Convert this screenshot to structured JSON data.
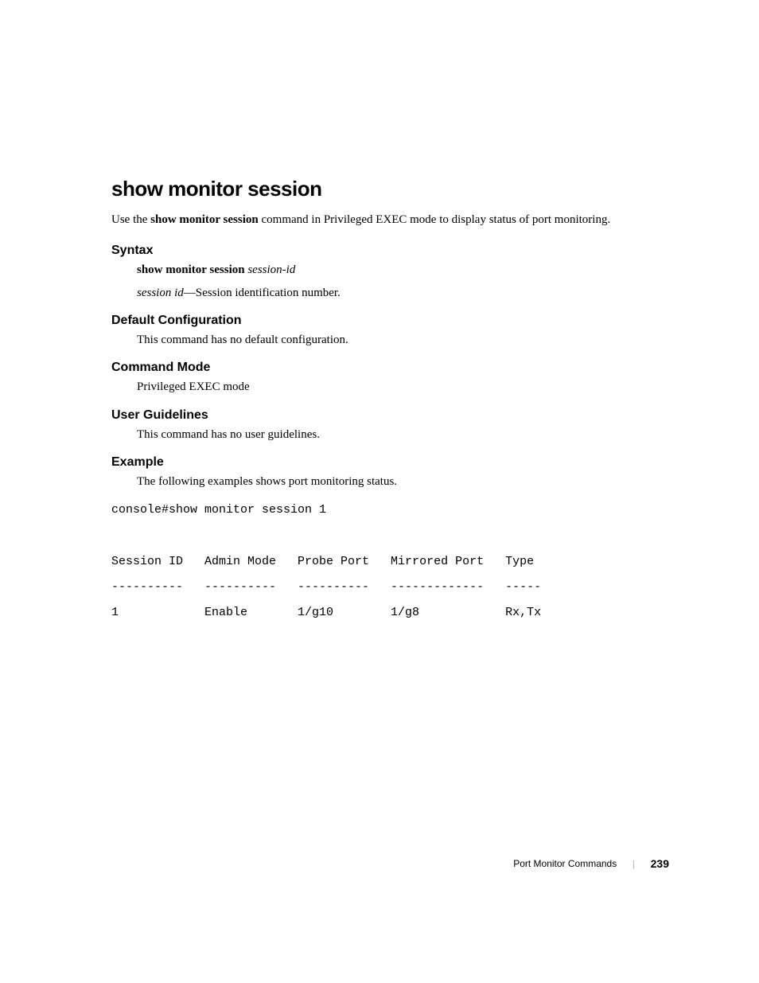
{
  "title": "show monitor session",
  "intro": {
    "prefix": "Use the ",
    "bold": "show monitor session",
    "suffix": " command in Privileged EXEC mode to display status of port monitoring."
  },
  "sections": {
    "syntax": {
      "heading": "Syntax",
      "command_bold": "show monitor session",
      "command_param": "session-id",
      "param_name": "session id",
      "param_desc": "—Session identification number."
    },
    "default_config": {
      "heading": "Default Configuration",
      "text": "This command has no default configuration."
    },
    "command_mode": {
      "heading": "Command Mode",
      "text": "Privileged EXEC mode"
    },
    "user_guidelines": {
      "heading": "User Guidelines",
      "text": "This command has no user guidelines."
    },
    "example": {
      "heading": "Example",
      "text": "The following examples shows port monitoring status.",
      "console_line": "console#show monitor session 1",
      "table": {
        "headers": [
          "Session ID",
          "Admin Mode",
          "Probe Port",
          "Mirrored Port",
          "Type"
        ],
        "separators": [
          "----------",
          "----------",
          "----------",
          "-------------",
          "-----"
        ],
        "row": [
          "1",
          "Enable",
          "1/g10",
          "1/g8",
          "Rx,Tx"
        ]
      }
    }
  },
  "footer": {
    "title": "Port Monitor Commands",
    "separator": "|",
    "page": "239"
  },
  "formatted": {
    "table_header": "Session ID   Admin Mode   Probe Port   Mirrored Port   Type",
    "table_sep": "----------   ----------   ----------   -------------   -----",
    "table_row": "1            Enable       1/g10        1/g8            Rx,Tx"
  }
}
